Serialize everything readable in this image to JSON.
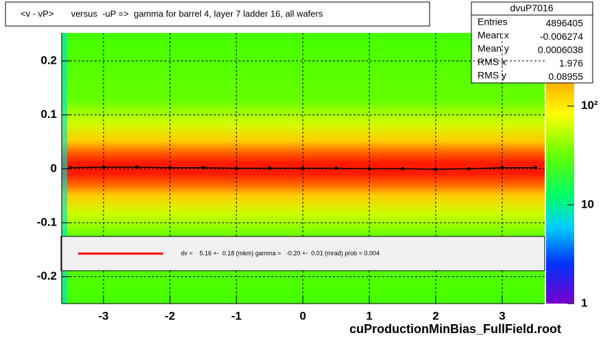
{
  "chart_data": {
    "type": "profile2d",
    "title": "<v - vP>       versus  -uP =>  gamma for barrel 4, layer 7 ladder 16, all wafers",
    "footer": "cuProductionMinBias_FullField.root",
    "stats": {
      "name": "dvuP7016",
      "rows": [
        {
          "label": "Entries",
          "value": 4896405
        },
        {
          "label": "Mean x",
          "value": -0.006274
        },
        {
          "label": "Mean y",
          "value": 0.0006038
        },
        {
          "label": "RMS x",
          "value": 1.976
        },
        {
          "label": "RMS y",
          "value": 0.08955
        }
      ]
    },
    "legend": "dv =    5.16 +-  0.18 (mkm) gamma =   -0.20 +-  0.01 (mrad) prob = 0.004",
    "fit_color": "#ff0000",
    "x": [
      -3.5,
      -3.0,
      -2.5,
      -2.0,
      -1.5,
      -1.0,
      -0.5,
      0.0,
      0.5,
      1.0,
      1.5,
      2.0,
      2.5,
      3.0,
      3.5
    ],
    "values": [
      0.002,
      0.003,
      0.003,
      0.002,
      0.002,
      0.001,
      0.001,
      0.001,
      0.001,
      0.0,
      0.0,
      -0.001,
      0.0,
      0.002,
      0.002
    ],
    "color": "#000000",
    "xlim": [
      -3.63,
      3.64
    ],
    "xticks": [
      -3,
      -2,
      -1,
      0,
      1,
      2,
      3
    ],
    "ylim": [
      -0.25,
      0.252
    ],
    "yticks": [
      -0.2,
      -0.1,
      0,
      0.1,
      0.2
    ],
    "zlim": [
      1,
      550
    ],
    "zticks": [
      1,
      10,
      {
        "value": 100,
        "label": "10²"
      }
    ],
    "zlog": true,
    "grid": true
  }
}
